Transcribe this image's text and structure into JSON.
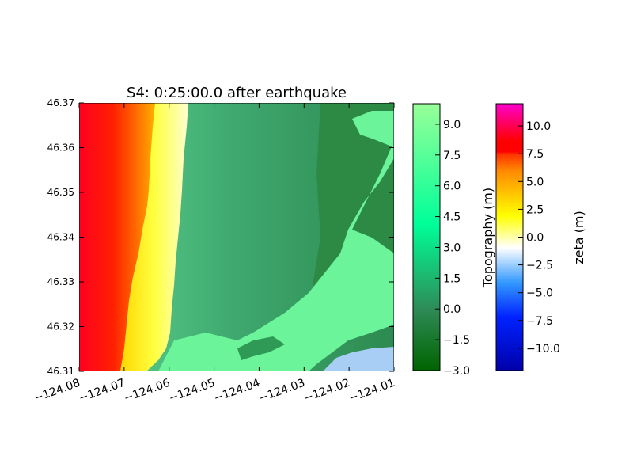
{
  "chart_data": {
    "type": "heatmap",
    "title": "S4: 0:25:00.0 after earthquake",
    "xlabel": "",
    "ylabel": "",
    "xlim": [
      -124.08,
      -124.01
    ],
    "ylim": [
      46.31,
      46.37
    ],
    "x_ticks": [
      "−124.08",
      "−124.07",
      "−124.06",
      "−124.05",
      "−124.04",
      "−124.03",
      "−124.02",
      "−124.01"
    ],
    "y_ticks": [
      "46.31",
      "46.32",
      "46.33",
      "46.34",
      "46.35",
      "46.36",
      "46.37"
    ],
    "grid": false,
    "colorbars": [
      {
        "label": "Topography (m)",
        "range": [
          -3.0,
          10.0
        ],
        "ticks": [
          "−3.0",
          "−1.5",
          "0.0",
          "1.5",
          "3.0",
          "4.5",
          "6.0",
          "7.5",
          "9.0"
        ],
        "colors": [
          "#006400",
          "#00ff99",
          "#99ff99"
        ]
      },
      {
        "label": "zeta (m)",
        "range": [
          -12.0,
          12.0
        ],
        "ticks": [
          "−10.0",
          "−7.5",
          "−5.0",
          "−2.5",
          "0.0",
          "2.5",
          "5.0",
          "7.5",
          "10.0"
        ],
        "colors": [
          "#0000aa",
          "#0000ff",
          "#00aaff",
          "#ffffff",
          "#ffff00",
          "#ff0000",
          "#ff00ff"
        ]
      }
    ]
  }
}
